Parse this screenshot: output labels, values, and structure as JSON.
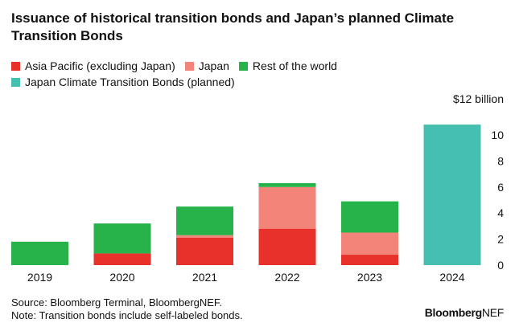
{
  "title": "Issuance of historical transition bonds and Japan’s planned Climate Transition Bonds",
  "legend": [
    {
      "label": "Asia Pacific (excluding Japan)",
      "color": "#e8312a"
    },
    {
      "label": "Japan",
      "color": "#f28479"
    },
    {
      "label": "Rest of the world",
      "color": "#27b24a"
    },
    {
      "label": "Japan Climate Transition Bonds (planned)",
      "color": "#45c0b0"
    }
  ],
  "footer": {
    "source": "Source: Bloomberg Terminal, BloombergNEF.",
    "note": "Note: Transition bonds include self-labeled bonds."
  },
  "brand": {
    "bold": "Bloomberg",
    "light": "NEF"
  },
  "chart_data": {
    "type": "bar",
    "stacked": true,
    "categories": [
      "2019",
      "2020",
      "2021",
      "2022",
      "2023",
      "2024"
    ],
    "series": [
      {
        "name": "Asia Pacific (excluding Japan)",
        "color": "#e8312a",
        "values": [
          0,
          0.9,
          2.1,
          2.8,
          0.8,
          0
        ]
      },
      {
        "name": "Japan",
        "color": "#f28479",
        "values": [
          0,
          0,
          0.2,
          3.2,
          1.7,
          0
        ]
      },
      {
        "name": "Rest of the world",
        "color": "#27b24a",
        "values": [
          1.8,
          2.3,
          2.2,
          0.3,
          2.4,
          0
        ]
      },
      {
        "name": "Japan Climate Transition Bonds (planned)",
        "color": "#45c0b0",
        "values": [
          0,
          0,
          0,
          0,
          0,
          10.8
        ]
      }
    ],
    "yunit": "$12 billion",
    "yticks": [
      0,
      2,
      4,
      6,
      8,
      10
    ],
    "ylim": [
      0,
      12
    ],
    "axis_side": "right"
  }
}
